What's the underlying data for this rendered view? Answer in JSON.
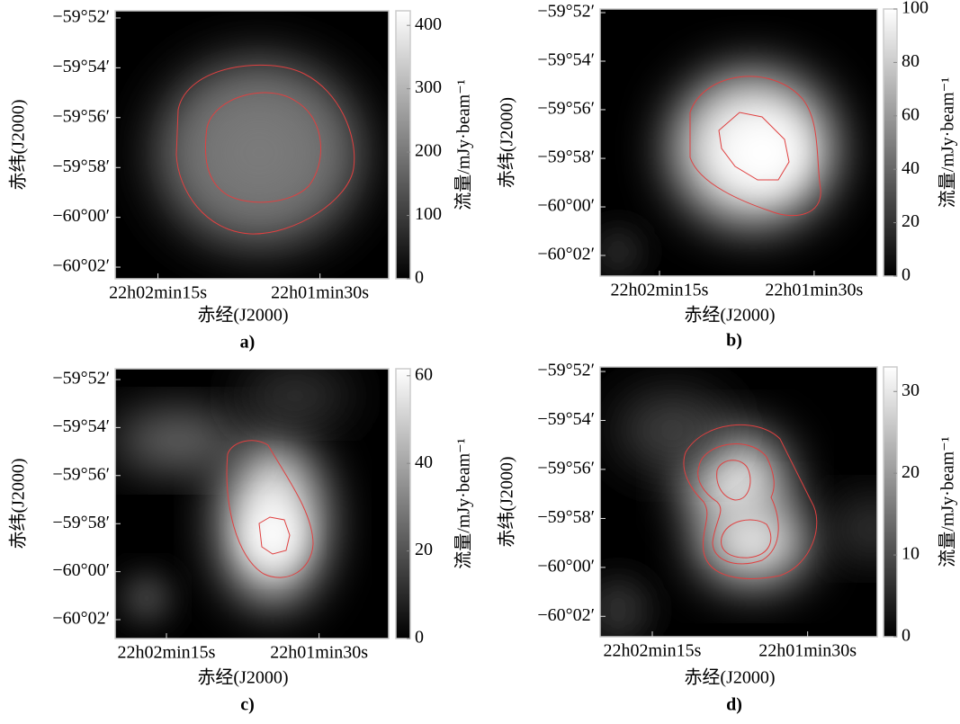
{
  "chart_data": [
    {
      "type": "image",
      "panel_label": "a)",
      "x_label": "赤经(J2000)",
      "y_label": "赤纬(J2000)",
      "colorbar_label": "流量/mJy·beam⁻¹",
      "xlim": [
        22.0408,
        22.0197
      ],
      "xticks": [
        {
          "value": 22.0375,
          "label": "22h02min15s"
        },
        {
          "value": 22.025,
          "label": "22h01min30s"
        }
      ],
      "ylim": [
        -60.0411,
        -59.8619
      ],
      "yticks": [
        {
          "value": -59.8667,
          "label": "−59°52′"
        },
        {
          "value": -59.9,
          "label": "−59°54′"
        },
        {
          "value": -59.9333,
          "label": "−59°56′"
        },
        {
          "value": -59.9667,
          "label": "−59°58′"
        },
        {
          "value": -60.0,
          "label": "−60°00′"
        },
        {
          "value": -60.0333,
          "label": "−60°02′"
        }
      ],
      "clim": [
        0,
        423
      ],
      "cticks": [
        0,
        100,
        200,
        300,
        400
      ],
      "colormap": "gray",
      "contour_color": "#e04040"
    },
    {
      "type": "image",
      "panel_label": "b)",
      "x_label": "赤经(J2000)",
      "y_label": "赤纬(J2000)",
      "colorbar_label": "流量/mJy·beam⁻¹",
      "xlim": [
        22.0423,
        22.0199
      ],
      "xticks": [
        {
          "value": 22.0375,
          "label": "22h02min15s"
        },
        {
          "value": 22.025,
          "label": "22h01min30s"
        }
      ],
      "ylim": [
        -60.0475,
        -59.8642
      ],
      "yticks": [
        {
          "value": -59.8667,
          "label": "−59°52′"
        },
        {
          "value": -59.9,
          "label": "−59°54′"
        },
        {
          "value": -59.9333,
          "label": "−59°56′"
        },
        {
          "value": -59.9667,
          "label": "−59°58′"
        },
        {
          "value": -60.0,
          "label": "−60°00′"
        },
        {
          "value": -60.0333,
          "label": "−60°02′"
        }
      ],
      "clim": [
        0,
        100
      ],
      "cticks": [
        0,
        20,
        40,
        60,
        80,
        100
      ],
      "colormap": "gray",
      "contour_color": "#e04040"
    },
    {
      "type": "image",
      "panel_label": "c)",
      "x_label": "赤经(J2000)",
      "y_label": "赤纬(J2000)",
      "colorbar_label": "流量/mJy·beam⁻¹",
      "xlim": [
        22.0417,
        22.0193
      ],
      "xticks": [
        {
          "value": 22.0375,
          "label": "22h02min15s"
        },
        {
          "value": 22.025,
          "label": "22h01min30s"
        }
      ],
      "ylim": [
        -60.0464,
        -59.8592
      ],
      "yticks": [
        {
          "value": -59.8667,
          "label": "−59°52′"
        },
        {
          "value": -59.9,
          "label": "−59°54′"
        },
        {
          "value": -59.9333,
          "label": "−59°56′"
        },
        {
          "value": -59.9667,
          "label": "−59°58′"
        },
        {
          "value": -60.0,
          "label": "−60°00′"
        },
        {
          "value": -60.0333,
          "label": "−60°02′"
        }
      ],
      "clim": [
        0,
        61.6
      ],
      "cticks": [
        0,
        20,
        40,
        60
      ],
      "colormap": "gray",
      "contour_color": "#e04040"
    },
    {
      "type": "image",
      "panel_label": "d)",
      "x_label": "赤经(J2000)",
      "y_label": "赤纬(J2000)",
      "colorbar_label": "流量/mJy·beam⁻¹",
      "xlim": [
        22.0417,
        22.0194
      ],
      "xticks": [
        {
          "value": 22.0375,
          "label": "22h02min15s"
        },
        {
          "value": 22.025,
          "label": "22h01min30s"
        }
      ],
      "ylim": [
        -60.0472,
        -59.8636
      ],
      "yticks": [
        {
          "value": -59.8667,
          "label": "−59°52′"
        },
        {
          "value": -59.9,
          "label": "−59°54′"
        },
        {
          "value": -59.9333,
          "label": "−59°56′"
        },
        {
          "value": -59.9667,
          "label": "−59°58′"
        },
        {
          "value": -60.0,
          "label": "−60°00′"
        },
        {
          "value": -60.0333,
          "label": "−60°02′"
        }
      ],
      "clim": [
        0,
        33
      ],
      "cticks": [
        0,
        10,
        20,
        30
      ],
      "colormap": "gray",
      "contour_color": "#e04040"
    }
  ]
}
